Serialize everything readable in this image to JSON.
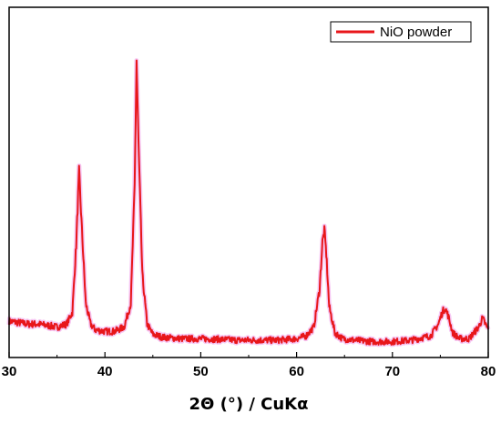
{
  "chart_data": {
    "type": "line",
    "xlabel": "2Θ (°) / CuKα",
    "ylabel": "",
    "xlim": [
      30,
      80
    ],
    "ylim": [
      0,
      1
    ],
    "x_ticks": [
      30,
      40,
      50,
      60,
      70,
      80
    ],
    "grid": false,
    "legend_position": "top-right",
    "series": [
      {
        "name": "NiO powder",
        "color": "#e8161a",
        "x": [
          30,
          31,
          32,
          33,
          34,
          35,
          36,
          36.6,
          37.0,
          37.3,
          37.6,
          38.0,
          38.5,
          39,
          40,
          41,
          42,
          42.7,
          43.1,
          43.3,
          43.5,
          43.9,
          44.4,
          45,
          46,
          48,
          50,
          52,
          54,
          56,
          58,
          60,
          61,
          61.8,
          62.4,
          62.7,
          62.9,
          63.1,
          63.4,
          64,
          64.8,
          66,
          68,
          70,
          72,
          74,
          74.8,
          75.2,
          75.5,
          75.8,
          76.3,
          77,
          78,
          79,
          79.4,
          79.7,
          80
        ],
        "y": [
          0.09,
          0.085,
          0.08,
          0.08,
          0.075,
          0.07,
          0.08,
          0.12,
          0.35,
          0.6,
          0.4,
          0.15,
          0.08,
          0.06,
          0.055,
          0.055,
          0.07,
          0.15,
          0.55,
          0.98,
          0.7,
          0.25,
          0.08,
          0.045,
          0.035,
          0.03,
          0.03,
          0.028,
          0.025,
          0.025,
          0.025,
          0.03,
          0.04,
          0.07,
          0.2,
          0.36,
          0.4,
          0.32,
          0.14,
          0.05,
          0.03,
          0.025,
          0.02,
          0.02,
          0.025,
          0.04,
          0.08,
          0.12,
          0.135,
          0.11,
          0.05,
          0.03,
          0.03,
          0.07,
          0.1,
          0.08,
          0.06
        ]
      }
    ]
  }
}
